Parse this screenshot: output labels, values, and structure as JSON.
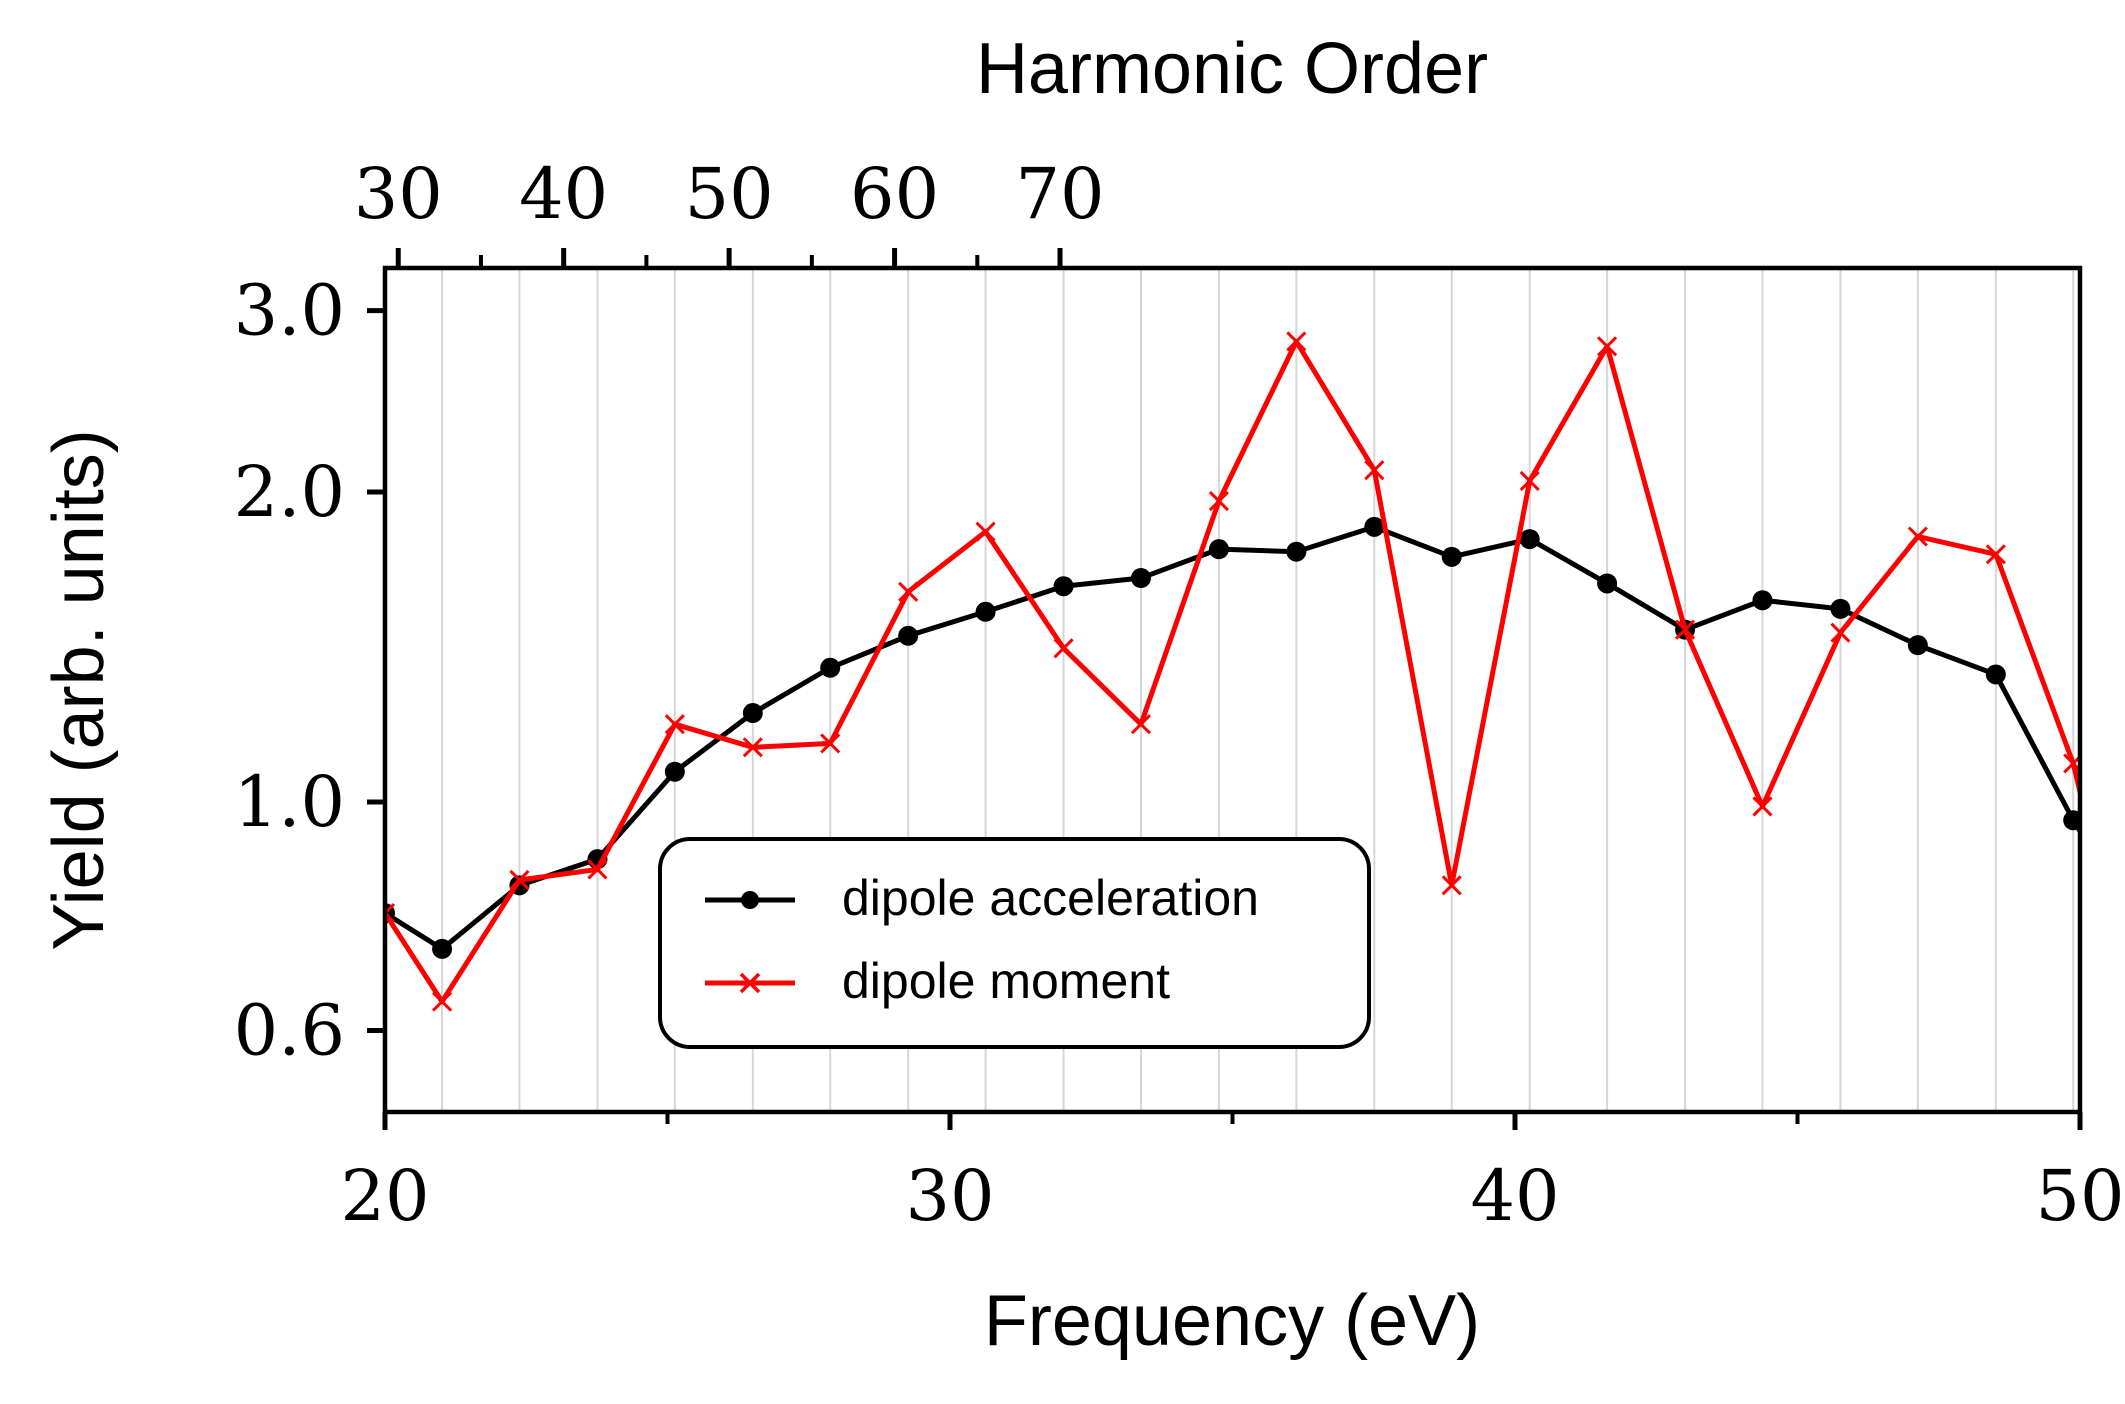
{
  "chart_data": {
    "type": "line",
    "xlabel": "Frequency (eV)",
    "ylabel": "Yield (arb. units)",
    "top_axis_label": "Harmonic Order",
    "xlim": [
      20,
      50
    ],
    "ylim": [
      0.5,
      3.3
    ],
    "yscale": "log",
    "grid": "vertical lines at each harmonic",
    "legend_placement": "lower-center",
    "x_ticks": [
      "20",
      "30",
      "40",
      "50"
    ],
    "y_ticks": [
      "0.6",
      "1.0",
      "2.0",
      "3.0"
    ],
    "top_ticks": [
      "30",
      "40",
      "50",
      "60",
      "70"
    ],
    "grid_x": [
      21.01,
      22.38,
      23.76,
      25.13,
      26.51,
      27.88,
      29.26,
      30.63,
      32.01,
      33.38,
      34.76,
      36.13,
      37.51,
      38.88,
      40.26,
      41.63,
      43.01,
      44.38,
      45.76,
      47.13,
      48.51,
      49.88
    ],
    "series": [
      {
        "name": "dipole acceleration",
        "color": "#000000",
        "marker": "circle",
        "x": [
          20.0,
          21.01,
          22.38,
          23.76,
          25.13,
          26.51,
          27.88,
          29.26,
          30.63,
          32.01,
          33.38,
          34.76,
          36.13,
          37.51,
          38.88,
          40.26,
          41.63,
          43.01,
          44.38,
          45.76,
          47.13,
          48.51,
          49.88,
          50.2
        ],
        "y": [
          0.78,
          0.72,
          0.83,
          0.88,
          1.07,
          1.22,
          1.35,
          1.45,
          1.53,
          1.62,
          1.65,
          1.76,
          1.75,
          1.85,
          1.73,
          1.8,
          1.63,
          1.47,
          1.57,
          1.54,
          1.42,
          1.33,
          0.96,
          0.9
        ]
      },
      {
        "name": "dipole moment",
        "color": "#ff0000",
        "marker": "x",
        "x": [
          20.0,
          21.01,
          22.38,
          23.76,
          25.13,
          26.51,
          27.88,
          29.26,
          30.63,
          32.01,
          33.38,
          34.76,
          36.13,
          37.51,
          38.88,
          40.26,
          41.63,
          43.01,
          44.38,
          45.76,
          47.13,
          48.51,
          49.88,
          50.2
        ],
        "y": [
          0.78,
          0.64,
          0.84,
          0.86,
          1.19,
          1.13,
          1.14,
          1.6,
          1.83,
          1.41,
          1.19,
          1.96,
          2.8,
          2.1,
          0.83,
          2.05,
          2.77,
          1.47,
          0.99,
          1.46,
          1.81,
          1.74,
          1.09,
          0.92
        ]
      }
    ]
  }
}
